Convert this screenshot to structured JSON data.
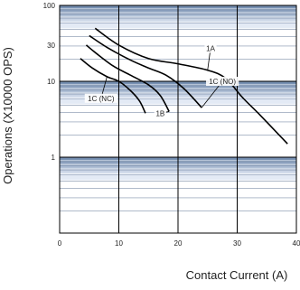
{
  "chart_data": {
    "type": "line",
    "xlabel": "Contact Current (A)",
    "ylabel": "Operations (X10000 OPS)",
    "x_scale": "linear",
    "y_scale": "log",
    "xlim": [
      0,
      40
    ],
    "ylim": [
      0.1,
      100
    ],
    "x_ticks": [
      0,
      10,
      20,
      30,
      40
    ],
    "y_ticks": [
      1,
      10,
      30,
      100
    ],
    "grid": true,
    "band_colors": [
      "#E3EAF5",
      "#6E89AD"
    ],
    "series": [
      {
        "name": "1A",
        "points": [
          [
            6,
            50
          ],
          [
            10,
            30
          ],
          [
            15,
            20
          ],
          [
            20,
            17
          ],
          [
            25,
            14
          ],
          [
            28,
            11
          ],
          [
            31,
            6
          ],
          [
            34,
            3.5
          ],
          [
            38.5,
            1.5
          ]
        ]
      },
      {
        "name": "1C (NO)",
        "points": [
          [
            5,
            40
          ],
          [
            8,
            28
          ],
          [
            12,
            19
          ],
          [
            15,
            15
          ],
          [
            18,
            12
          ],
          [
            21,
            8
          ],
          [
            24,
            4.5
          ]
        ]
      },
      {
        "name": "1B",
        "points": [
          [
            4.5,
            30
          ],
          [
            6,
            24
          ],
          [
            9,
            16
          ],
          [
            12,
            12
          ],
          [
            15,
            9
          ],
          [
            17,
            6.5
          ],
          [
            18.5,
            4
          ]
        ]
      },
      {
        "name": "1C (NC)",
        "points": [
          [
            3.5,
            20
          ],
          [
            5.5,
            15
          ],
          [
            8,
            11.5
          ],
          [
            10,
            10
          ],
          [
            12,
            7.5
          ],
          [
            13.5,
            5.5
          ],
          [
            14.5,
            3.8
          ]
        ]
      }
    ],
    "annotations": [
      {
        "text": "1A",
        "x": 25.5,
        "y": 25,
        "series": "1A"
      },
      {
        "text": "1C (NO)",
        "x": 27.5,
        "y": 9.2,
        "series": "1C (NO)"
      },
      {
        "text": "1B",
        "x": 17,
        "y": 3.5,
        "series": "1B"
      },
      {
        "text": "1C (NC)",
        "x": 7,
        "y": 5.5,
        "series": "1C (NC)"
      }
    ]
  }
}
